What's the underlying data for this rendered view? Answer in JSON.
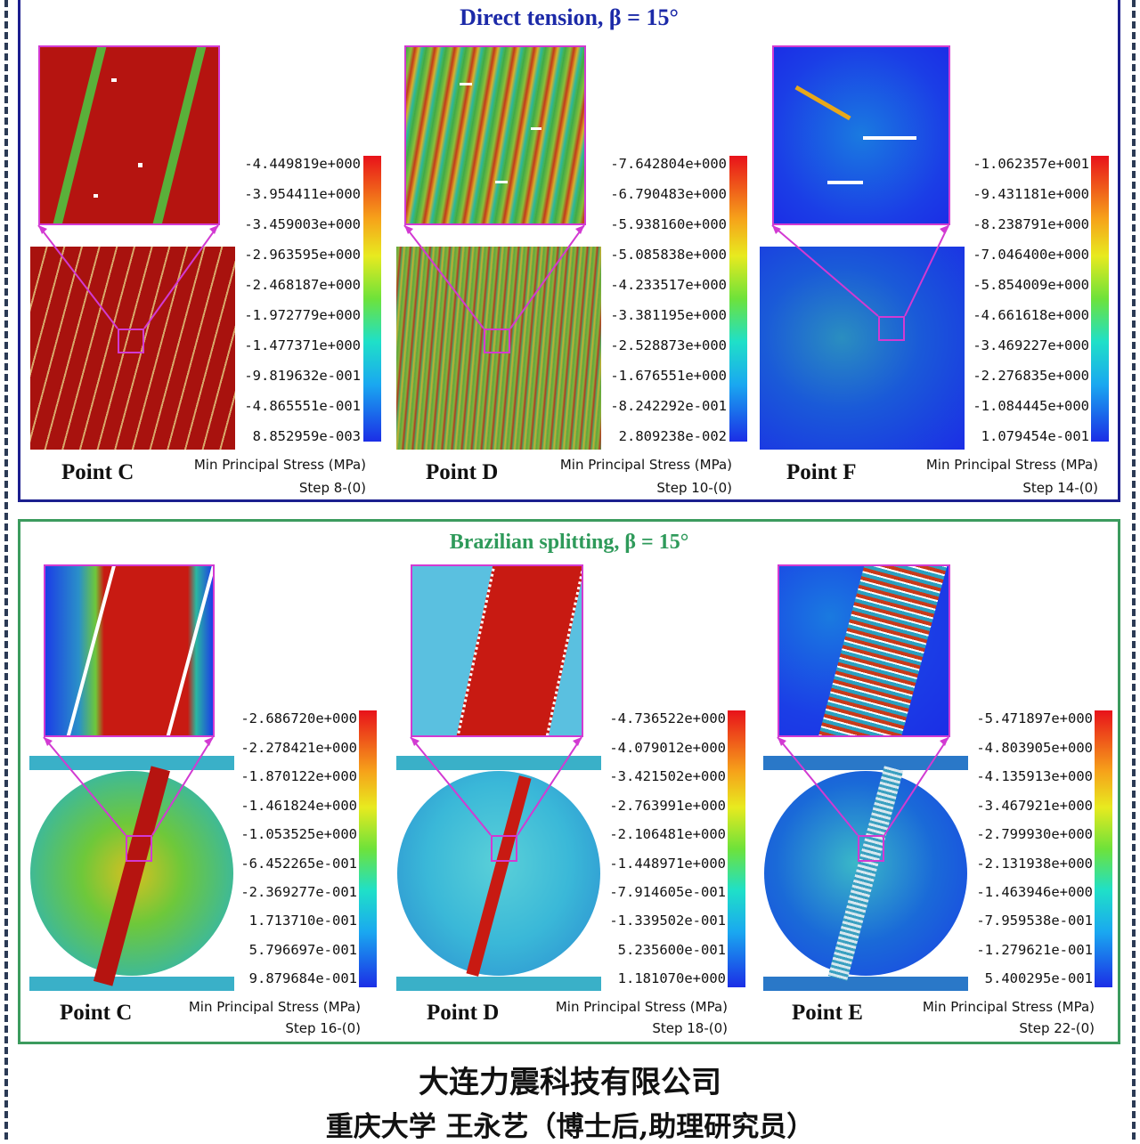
{
  "colors": {
    "frame_top": "#1c1f8f",
    "frame_bottom": "#3c9b5e",
    "title_top": "#1c2aa8",
    "title_bottom": "#2e9a5a",
    "highlight": "#d23ad2"
  },
  "panels": [
    {
      "title": "Direct tension, β = 15°",
      "cells": [
        {
          "point": "Point C",
          "quantity": "Min Principal Stress (MPa)",
          "step": "Step 8-(0)",
          "ticks": [
            "-4.449819e+000",
            "-3.954411e+000",
            "-3.459003e+000",
            "-2.963595e+000",
            "-2.468187e+000",
            "-1.972779e+000",
            "-1.477371e+000",
            "-9.819632e-001",
            "-4.865551e-001",
            "8.852959e-003"
          ],
          "field_style": "red-bands"
        },
        {
          "point": "Point D",
          "quantity": "Min Principal Stress (MPa)",
          "step": "Step 10-(0)",
          "ticks": [
            "-7.642804e+000",
            "-6.790483e+000",
            "-5.938160e+000",
            "-5.085838e+000",
            "-4.233517e+000",
            "-3.381195e+000",
            "-2.528873e+000",
            "-1.676551e+000",
            "-8.242292e-001",
            "2.809238e-002"
          ],
          "field_style": "noisy-green"
        },
        {
          "point": "Point F",
          "quantity": "Min Principal Stress (MPa)",
          "step": "Step 14-(0)",
          "ticks": [
            "-1.062357e+001",
            "-9.431181e+000",
            "-8.238791e+000",
            "-7.046400e+000",
            "-5.854009e+000",
            "-4.661618e+000",
            "-3.469227e+000",
            "-2.276835e+000",
            "-1.084445e+000",
            "1.079454e-001"
          ],
          "field_style": "blue-cracks"
        }
      ]
    },
    {
      "title": "Brazilian splitting, β = 15°",
      "cells": [
        {
          "point": "Point C",
          "quantity": "Min Principal Stress (MPa)",
          "step": "Step 16-(0)",
          "ticks": [
            "-2.686720e+000",
            "-2.278421e+000",
            "-1.870122e+000",
            "-1.461824e+000",
            "-1.053525e+000",
            "-6.452265e-001",
            "-2.369277e-001",
            "1.713710e-001",
            "5.796697e-001",
            "9.879684e-001"
          ],
          "field_style": "disc-green"
        },
        {
          "point": "Point D",
          "quantity": "Min Principal Stress (MPa)",
          "step": "Step 18-(0)",
          "ticks": [
            "-4.736522e+000",
            "-4.079012e+000",
            "-3.421502e+000",
            "-2.763991e+000",
            "-2.106481e+000",
            "-1.448971e+000",
            "-7.914605e-001",
            "-1.339502e-001",
            "5.235600e-001",
            "1.181070e+000"
          ],
          "field_style": "disc-cyan"
        },
        {
          "point": "Point E",
          "quantity": "Min Principal Stress (MPa)",
          "step": "Step 22-(0)",
          "ticks": [
            "-5.471897e+000",
            "-4.803905e+000",
            "-4.135913e+000",
            "-3.467921e+000",
            "-2.799930e+000",
            "-2.131938e+000",
            "-1.463946e+000",
            "-7.959538e-001",
            "-1.279621e-001",
            "5.400295e-001"
          ],
          "field_style": "disc-blue"
        }
      ]
    }
  ],
  "footer": {
    "line1": "大连力震科技有限公司",
    "line2": "重庆大学 王永艺（博士后,助理研究员）"
  }
}
